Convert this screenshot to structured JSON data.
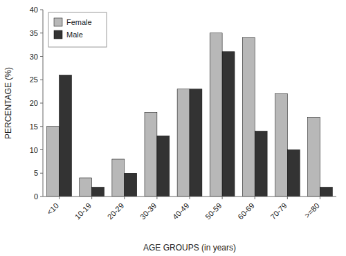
{
  "chart_data": {
    "type": "bar",
    "xlabel": "AGE GROUPS (in years)",
    "ylabel": "PERCENTAGE (%)",
    "categories": [
      "<10",
      "10-19",
      "20-29",
      "30-39",
      "40-49",
      "50-59",
      "60-69",
      "70-79",
      ">=80"
    ],
    "series": [
      {
        "name": "Female",
        "color": "#b8b8b8",
        "values": [
          15,
          4,
          8,
          18,
          23,
          35,
          34,
          22,
          17
        ]
      },
      {
        "name": "Male",
        "color": "#333333",
        "values": [
          26,
          2,
          5,
          13,
          23,
          31,
          14,
          10,
          2
        ]
      }
    ],
    "ylim": [
      0,
      40
    ],
    "yticks": [
      0,
      5,
      10,
      15,
      20,
      25,
      30,
      35,
      40
    ],
    "grid": false,
    "legend": "upper left"
  }
}
